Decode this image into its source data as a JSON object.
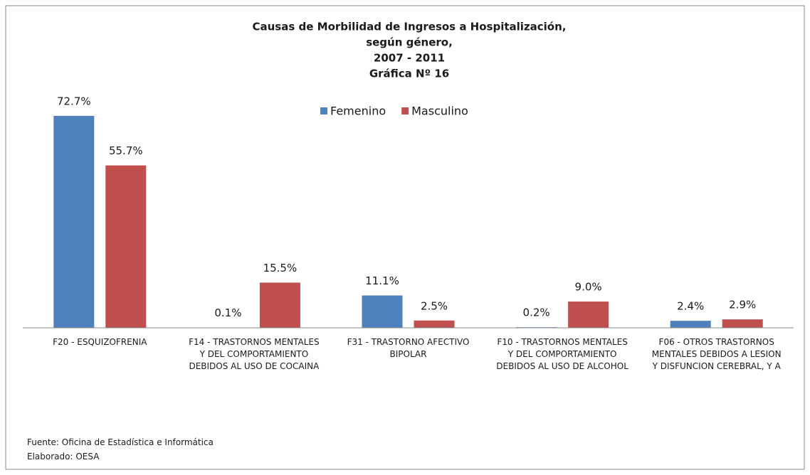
{
  "chart_data": {
    "type": "bar",
    "title": "Causas de Morbilidad de Ingresos a Hospitalización,",
    "subtitle": [
      "según género,",
      "2007 - 2011",
      "Gráfica Nº 16"
    ],
    "categories": [
      "F20 - ESQUIZOFRENIA",
      "F14 - TRASTORNOS MENTALES Y DEL COMPORTAMIENTO DEBIDOS AL USO DE COCAINA",
      "F31 - TRASTORNO AFECTIVO BIPOLAR",
      "F10 - TRASTORNOS MENTALES Y DEL COMPORTAMIENTO DEBIDOS AL USO DE ALCOHOL",
      "F06 - OTROS TRASTORNOS MENTALES DEBIDOS A LESION Y DISFUNCION CEREBRAL, Y A"
    ],
    "series": [
      {
        "name": "Femenino",
        "color": "#4f81bd",
        "values": [
          72.7,
          0.1,
          11.1,
          0.2,
          2.4
        ],
        "value_labels": [
          "72.7%",
          "0.1%",
          "11.1%",
          "0.2%",
          "2.4%"
        ]
      },
      {
        "name": "Masculino",
        "color": "#c0504d",
        "values": [
          55.7,
          15.5,
          2.5,
          9.0,
          2.9
        ],
        "value_labels": [
          "55.7%",
          "15.5%",
          "2.5%",
          "9.0%",
          "2.9%"
        ]
      }
    ],
    "ylim": [
      0,
      80
    ],
    "legend": "top",
    "notes": [
      "Fuente: Oficina de Estadística e Informática",
      "Elaborado: OESA"
    ]
  }
}
